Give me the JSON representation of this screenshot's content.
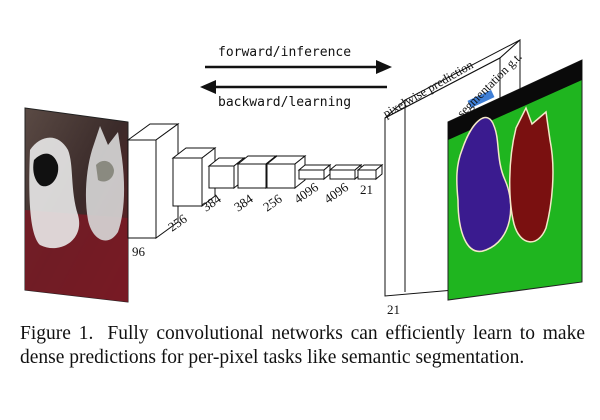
{
  "figure": {
    "arrows": {
      "forward": "forward/inference",
      "backward": "backward/learning"
    },
    "layers": [
      "96",
      "256",
      "384",
      "384",
      "256",
      "4096",
      "4096",
      "21"
    ],
    "output_depth": "21",
    "prediction_label": "pixelwise prediction",
    "gt_label": "segmentation g.t.",
    "colors": {
      "gt_background": "#1fb51f",
      "gt_dog": "#3a1b8f",
      "gt_cat": "#7a1010",
      "gt_border": "#f4e8c8"
    }
  },
  "caption": {
    "figure_number": "Figure 1.",
    "text": "Fully convolutional networks can efficiently learn to make dense predictions for per-pixel tasks like semantic segmentation."
  }
}
